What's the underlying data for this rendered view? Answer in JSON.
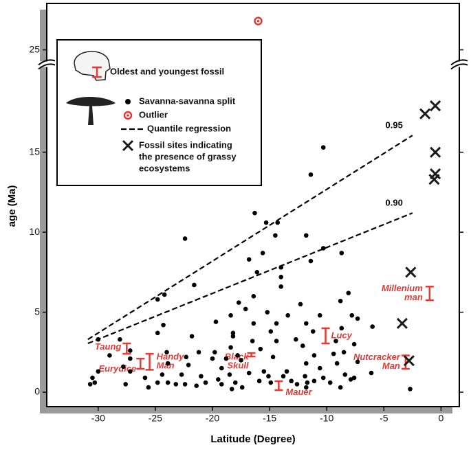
{
  "chart_data": {
    "type": "scatter",
    "x_label": "Latitude (Degree)",
    "y_label": "age (Ma)",
    "xlim": [
      -34.5,
      1.6
    ],
    "ylim": [
      -0.9,
      27.9
    ],
    "ybreak": [
      20.5,
      24.1
    ],
    "xticks": [
      -30,
      -25,
      -20,
      -15,
      -10,
      -5,
      0
    ],
    "yticks": [
      0,
      5,
      10,
      15,
      25
    ],
    "series": [
      {
        "name": [
          "Savanna-savanna split"
        ],
        "color": "#000000",
        "marker": "dot",
        "x": [
          -10.3,
          -11.4,
          -16.3,
          -15.3,
          -14.3,
          -22.4,
          -11.8,
          -14.5,
          -10.3,
          -16.8,
          -15.6,
          -11.4,
          -8.7,
          -14.0,
          -16.1,
          -14.0,
          -21.6,
          -14.0,
          -8.1,
          -24.2,
          -24.8,
          -16.4,
          -17.7,
          -12.3,
          -8.8,
          -17.1,
          -18.4,
          -15.2,
          -13.4,
          -10.6,
          -7.8,
          -7.3,
          -24.3,
          -19.7,
          -16.4,
          -14.4,
          -11.8,
          -6.0,
          -24.8,
          -18.2,
          -14.9,
          -11.2,
          -8.7,
          -28.1,
          -30.0,
          -21.8,
          -18.2,
          -12.7,
          -14.4,
          -16.5,
          -9.2,
          -12.1,
          -7.6,
          -18.4,
          -15.8,
          -27.2,
          -24.0,
          -21.2,
          -19.8,
          -17.8,
          -14.7,
          -11.1,
          -9.4,
          -8.5,
          -29.0,
          -22.3,
          -20.0,
          -18.8,
          -17.5,
          -11.8,
          -7.3,
          -27.2,
          -27.8,
          -23.9,
          -22.1,
          -19.2,
          -15.5,
          -13.5,
          -10.6,
          -9.1,
          -6.1,
          -30.0,
          -27.2,
          -24.4,
          -22.7,
          -21.0,
          -18.5,
          -16.8,
          -15.1,
          -13.8,
          -11.9,
          -10.3,
          -8.4,
          -7.6,
          -30.5,
          -30.3,
          -30.7,
          -27.6,
          -25.9,
          -24.8,
          -23.9,
          -23.2,
          -22.4,
          -21.4,
          -20.6,
          -19.5,
          -19.2,
          -18.0,
          -17.4,
          -15.9,
          -14.9,
          -13.1,
          -12.6,
          -11.7,
          -11.1,
          -9.7,
          -8.8,
          -7.9,
          -2.7,
          -25.6,
          -18.3,
          -11.8
        ],
        "values": [
          15.3,
          13.6,
          11.2,
          10.6,
          10.6,
          9.6,
          9.8,
          9.8,
          9.0,
          8.3,
          8.7,
          8.2,
          8.7,
          7.8,
          7.5,
          7.2,
          6.7,
          6.6,
          6.2,
          6.1,
          5.8,
          6.0,
          5.6,
          5.5,
          5.7,
          5.2,
          4.8,
          5.0,
          4.8,
          4.8,
          4.8,
          4.6,
          4.2,
          4.4,
          4.3,
          4.3,
          4.3,
          4.1,
          3.7,
          3.7,
          3.8,
          3.8,
          4.0,
          3.3,
          3.3,
          3.5,
          3.5,
          3.3,
          3.2,
          3.2,
          3.2,
          2.9,
          3.0,
          2.8,
          2.7,
          2.6,
          2.5,
          2.5,
          2.5,
          2.3,
          2.2,
          2.3,
          2.4,
          2.5,
          2.3,
          2.2,
          2.1,
          2.1,
          2.0,
          1.8,
          1.9,
          2.1,
          1.6,
          1.8,
          1.7,
          1.5,
          1.3,
          1.3,
          1.5,
          1.8,
          1.2,
          1.3,
          1.3,
          1.1,
          1.1,
          1.0,
          1.1,
          1.2,
          1.0,
          1.0,
          1.0,
          0.9,
          1.1,
          0.9,
          0.9,
          0.6,
          0.5,
          0.5,
          0.9,
          0.6,
          0.6,
          0.5,
          0.5,
          0.4,
          0.6,
          0.8,
          0.5,
          0.6,
          0.3,
          0.7,
          0.6,
          0.7,
          0.5,
          0.6,
          0.7,
          0.6,
          0.3,
          0.8,
          0.2,
          0.3,
          0.2,
          0.3
        ]
      },
      {
        "name": [
          "Outlier"
        ],
        "color": "#e53935",
        "marker": "ring",
        "x": [
          -16.0
        ],
        "values": [
          26.8
        ]
      },
      {
        "name": [
          "Fossil sites indicating",
          "the presence of grassy",
          "ecosystems"
        ],
        "color": "#1a1a1a",
        "marker": "cross",
        "x": [
          -1.4,
          -0.5,
          -0.5,
          -0.5,
          -0.6,
          -2.65,
          -3.4,
          -2.8
        ],
        "values": [
          17.4,
          17.9,
          15.0,
          13.65,
          13.3,
          7.5,
          4.3,
          1.97
        ]
      }
    ],
    "quantile_legend": "Quantile regression",
    "quantile_lines": [
      {
        "label": "0.95",
        "x": [
          -30.9,
          -2.5
        ],
        "values": [
          3.3,
          16.05
        ]
      },
      {
        "label": "0.90",
        "x": [
          -30.9,
          -2.5
        ],
        "values": [
          3.05,
          11.2
        ]
      }
    ],
    "fossils": {
      "name": "Oldest and youngest fossil",
      "color": "#e53935",
      "items": [
        {
          "label": [
            "Taung"
          ],
          "x": -27.5,
          "min": 2.4,
          "max": 3.05
        },
        {
          "label": [
            "Eurydice"
          ],
          "x": -26.3,
          "min": 1.46,
          "max": 2.1
        },
        {
          "label": [
            "Handy",
            "Man"
          ],
          "x": -25.5,
          "min": 1.4,
          "max": 2.4
        },
        {
          "label": [
            "Black",
            "Skull"
          ],
          "x": -16.6,
          "min": 2.23,
          "max": 2.45
        },
        {
          "label": [
            "Mauer"
          ],
          "x": -14.2,
          "min": 0.13,
          "max": 0.69
        },
        {
          "label": [
            "Lucy"
          ],
          "x": -10.1,
          "min": 3.05,
          "max": 4.0
        },
        {
          "label": [
            "Nutcracker",
            "Man"
          ],
          "x": -3.1,
          "min": 1.46,
          "max": 2.3
        },
        {
          "label": [
            "Millenium",
            "man"
          ],
          "x": -1.0,
          "min": 5.75,
          "max": 6.6
        }
      ]
    }
  }
}
